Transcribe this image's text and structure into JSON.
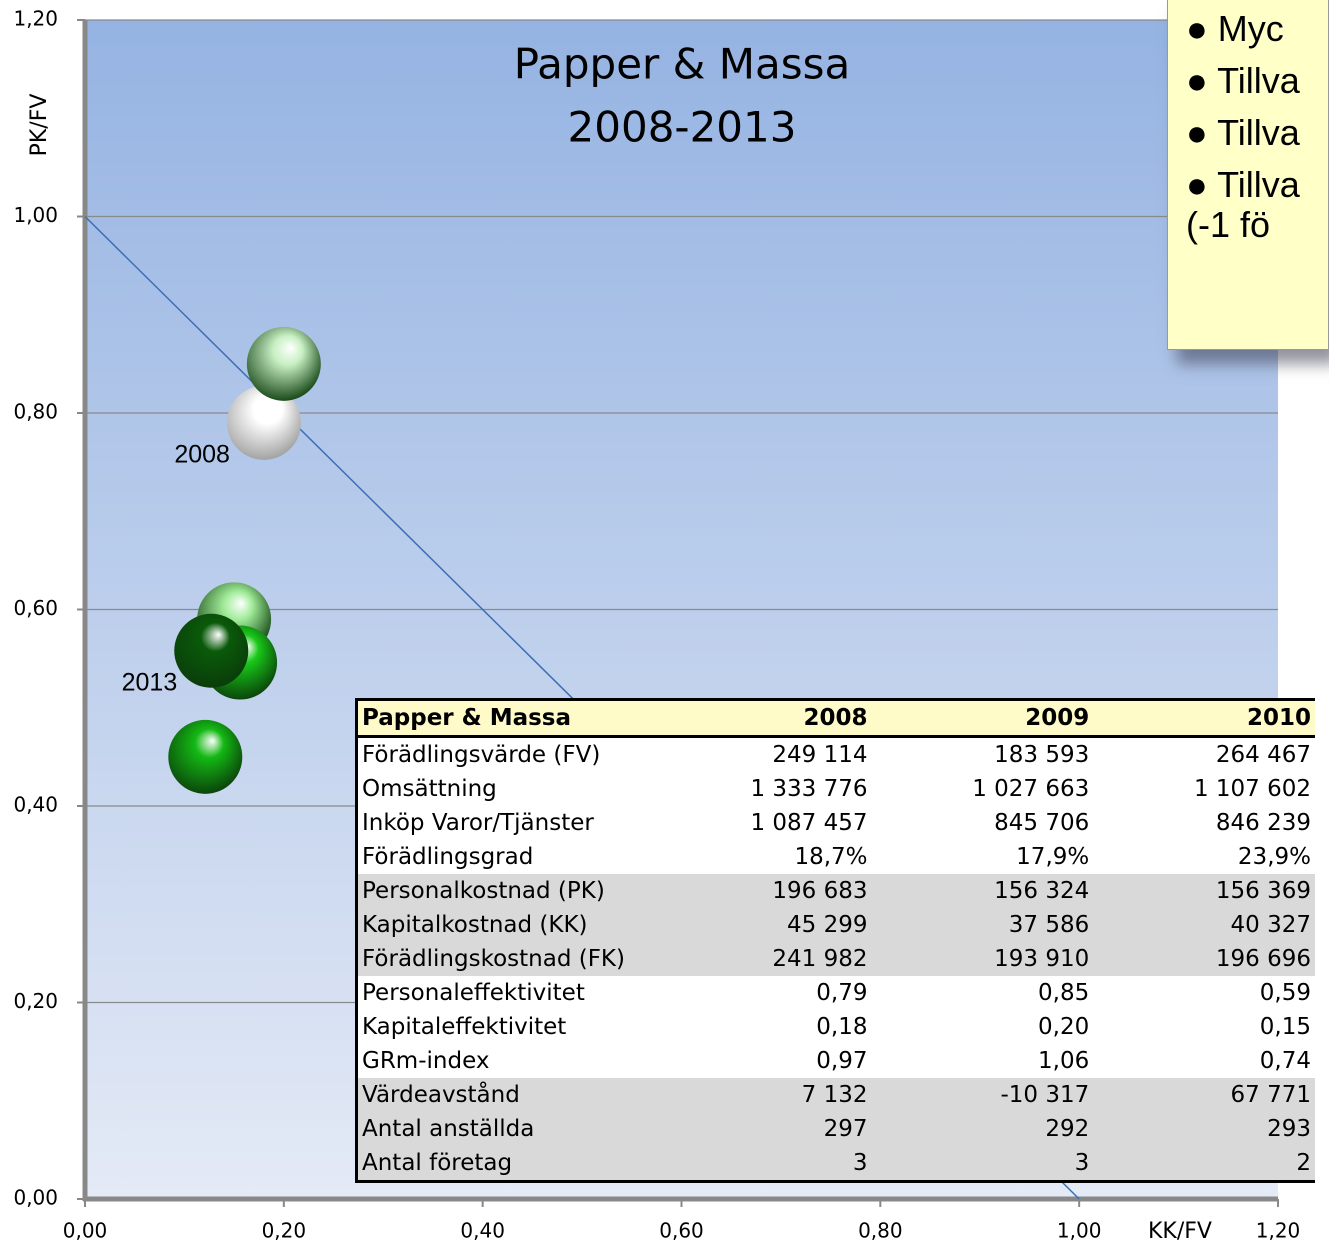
{
  "chart_data": {
    "type": "scatter",
    "title": "Papper & Massa",
    "subtitle": "2008-2013",
    "xlabel": "KK/FV",
    "ylabel": "PK/FV",
    "xlim": [
      0,
      1.2
    ],
    "ylim": [
      0,
      1.2
    ],
    "xticks": [
      {
        "value": 0,
        "label": "0,00"
      },
      {
        "value": 0.2,
        "label": "0,20"
      },
      {
        "value": 0.4,
        "label": "0,40"
      },
      {
        "value": 0.6,
        "label": "0,60"
      },
      {
        "value": 0.8,
        "label": "0,80"
      },
      {
        "value": 1,
        "label": "1,00"
      },
      {
        "value": 1.2,
        "label": "1,20"
      }
    ],
    "yticks": [
      {
        "value": 0,
        "label": "0,00"
      },
      {
        "value": 0.2,
        "label": "0,20"
      },
      {
        "value": 0.4,
        "label": "0,40"
      },
      {
        "value": 0.6,
        "label": "0,60"
      },
      {
        "value": 0.8,
        "label": "0,80"
      },
      {
        "value": 1,
        "label": "1,00"
      },
      {
        "value": 1.2,
        "label": "1,20"
      }
    ],
    "grid": true,
    "x": [
      0.18,
      0.2,
      0.15,
      0.156,
      0.121,
      0.127
    ],
    "values": [
      0.79,
      0.85,
      0.59,
      0.546,
      0.45,
      0.558
    ],
    "colors": [
      "#ffffff",
      "#c8f0c4",
      "#a0eb98",
      "#18c818",
      "#14b814",
      "#0a5a0a"
    ],
    "annotations": [
      {
        "text": "2008",
        "point": 0
      },
      {
        "text": "2013",
        "point": 5
      }
    ],
    "reference_line": {
      "x": [
        0,
        1
      ],
      "y": [
        1,
        0
      ]
    }
  },
  "callout": {
    "items": [
      "Myc",
      "Tillva",
      "Tillva",
      "Tillva\n(-1 fö"
    ]
  },
  "table": {
    "header": [
      "Papper & Massa",
      "2008",
      "2009",
      "2010"
    ],
    "rows": [
      [
        "Förädlingsvärde (FV)",
        "249 114",
        "183 593",
        "264 467"
      ],
      [
        "Omsättning",
        "1 333 776",
        "1 027 663",
        "1 107 602"
      ],
      [
        "Inköp Varor/Tjänster",
        "1 087 457",
        "845 706",
        "846 239"
      ],
      [
        "Förädlingsgrad",
        "18,7%",
        "17,9%",
        "23,9%"
      ],
      [
        "Personalkostnad (PK)",
        "196 683",
        "156 324",
        "156 369"
      ],
      [
        "Kapitalkostnad (KK)",
        "45 299",
        "37 586",
        "40 327"
      ],
      [
        "Förädlingskostnad (FK)",
        "241 982",
        "193 910",
        "196 696"
      ],
      [
        "Personaleffektivitet",
        "0,79",
        "0,85",
        "0,59"
      ],
      [
        "Kapitaleffektivitet",
        "0,18",
        "0,20",
        "0,15"
      ],
      [
        "GRm-index",
        "0,97",
        "1,06",
        "0,74"
      ],
      [
        "Värdeavstånd",
        "7 132",
        "-10 317",
        "67 771"
      ],
      [
        "Antal anställda",
        "297",
        "292",
        "293"
      ],
      [
        "Antal företag",
        "3",
        "3",
        "2"
      ]
    ]
  }
}
